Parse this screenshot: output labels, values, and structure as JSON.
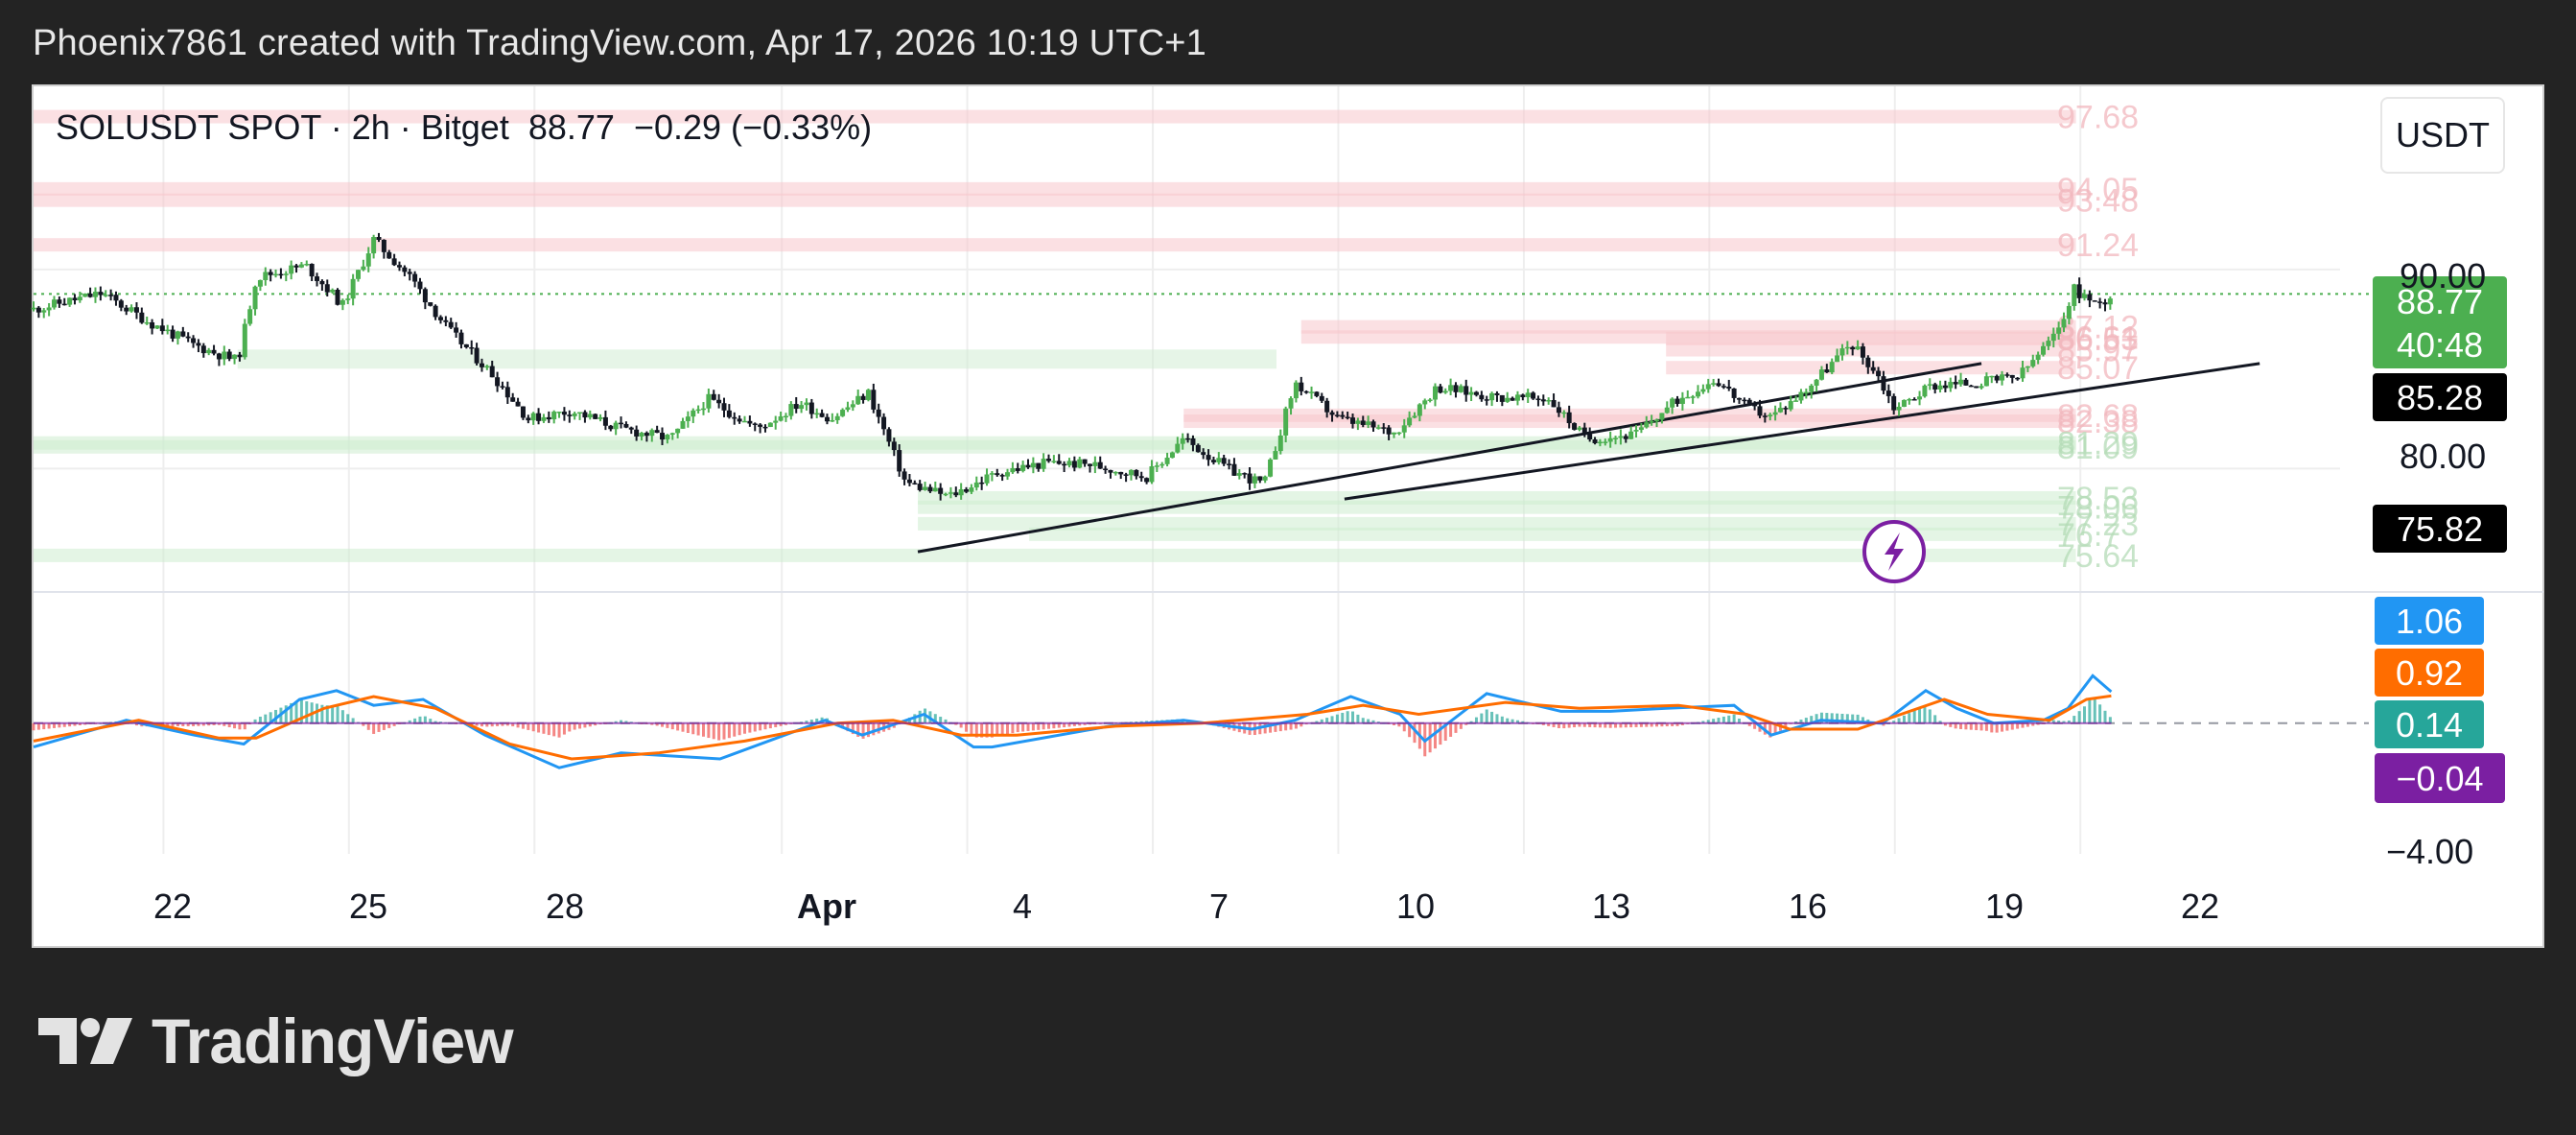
{
  "header": {
    "attribution": "Phoenix7861 created with TradingView.com, Apr 17, 2026 10:19 UTC+1"
  },
  "legend": {
    "symbol_line": "SOLUSDT SPOT · 2h · Bitget  88.77  −0.29 (−0.33%)"
  },
  "currency": "USDT",
  "footer": {
    "brand": "TradingView"
  },
  "colors": {
    "up": "#4caf50",
    "down": "#131722",
    "resistance_zone": "#f8c6cc",
    "support_zone": "#cdeccf",
    "macd_line": "#2196f3",
    "signal_line": "#ff6d00",
    "price_line": "#4caf50",
    "background": "#232323",
    "bolt_icon": "#7b1fa2"
  },
  "chart_data": [
    {
      "type": "candlestick",
      "title": "",
      "symbol": "SOLUSDT",
      "interval": "2h",
      "exchange": "Bitget",
      "last": 88.77,
      "change": -0.29,
      "change_pct": -0.33,
      "x_tick_labels": [
        "22",
        "25",
        "28",
        "Apr",
        "4",
        "7",
        "10",
        "13",
        "16",
        "19",
        "22"
      ],
      "x_range_days": [
        19.9,
        57.2
      ],
      "y_axis_tick_labels": [
        "80.00",
        "90.00"
      ],
      "y_range": [
        73.9,
        99.2
      ],
      "grid": true,
      "approx_close_path": [
        {
          "day": 19.9,
          "close": 88.0
        },
        {
          "day": 21.0,
          "close": 88.8
        },
        {
          "day": 21.8,
          "close": 87.3
        },
        {
          "day": 22.5,
          "close": 86.2
        },
        {
          "day": 23.2,
          "close": 85.4
        },
        {
          "day": 23.5,
          "close": 89.6
        },
        {
          "day": 24.3,
          "close": 90.2
        },
        {
          "day": 24.9,
          "close": 88.2
        },
        {
          "day": 25.4,
          "close": 91.5
        },
        {
          "day": 26.0,
          "close": 89.6
        },
        {
          "day": 26.6,
          "close": 87.0
        },
        {
          "day": 27.3,
          "close": 84.8
        },
        {
          "day": 27.9,
          "close": 82.5
        },
        {
          "day": 28.6,
          "close": 82.9
        },
        {
          "day": 29.4,
          "close": 82.0
        },
        {
          "day": 30.2,
          "close": 81.5
        },
        {
          "day": 30.8,
          "close": 83.5
        },
        {
          "day": 31.6,
          "close": 82.0
        },
        {
          "day": 32.3,
          "close": 83.3
        },
        {
          "day": 32.8,
          "close": 82.5
        },
        {
          "day": 33.4,
          "close": 83.8
        },
        {
          "day": 34.0,
          "close": 79.3
        },
        {
          "day": 34.7,
          "close": 78.6
        },
        {
          "day": 35.5,
          "close": 79.8
        },
        {
          "day": 36.3,
          "close": 80.3
        },
        {
          "day": 37.0,
          "close": 80.2
        },
        {
          "day": 37.9,
          "close": 79.6
        },
        {
          "day": 38.5,
          "close": 81.5
        },
        {
          "day": 39.2,
          "close": 80.0
        },
        {
          "day": 39.8,
          "close": 79.2
        },
        {
          "day": 40.3,
          "close": 84.3
        },
        {
          "day": 41.0,
          "close": 82.5
        },
        {
          "day": 41.9,
          "close": 81.8
        },
        {
          "day": 42.6,
          "close": 84.1
        },
        {
          "day": 43.5,
          "close": 83.6
        },
        {
          "day": 44.4,
          "close": 83.5
        },
        {
          "day": 45.0,
          "close": 81.5
        },
        {
          "day": 45.8,
          "close": 81.7
        },
        {
          "day": 46.5,
          "close": 83.5
        },
        {
          "day": 47.1,
          "close": 84.5
        },
        {
          "day": 47.6,
          "close": 83.1
        },
        {
          "day": 48.0,
          "close": 82.6
        },
        {
          "day": 48.5,
          "close": 83.8
        },
        {
          "day": 49.3,
          "close": 86.3
        },
        {
          "day": 49.7,
          "close": 84.8
        },
        {
          "day": 50.0,
          "close": 83.0
        },
        {
          "day": 50.6,
          "close": 84.2
        },
        {
          "day": 51.3,
          "close": 84.3
        },
        {
          "day": 52.0,
          "close": 84.6
        },
        {
          "day": 52.6,
          "close": 86.7
        },
        {
          "day": 52.9,
          "close": 89.0
        },
        {
          "day": 53.3,
          "close": 88.2
        },
        {
          "day": 53.5,
          "close": 88.77
        }
      ],
      "resistance_zone_labels": [
        "97.68",
        "94.05",
        "93.48",
        "91.24",
        "87.12",
        "86.61",
        "86.53",
        "85.97",
        "85.07",
        "82.68",
        "82.38"
      ],
      "support_zone_labels": [
        "81.29",
        "81.09",
        "78.53",
        "78.06",
        "77.23",
        "76.7",
        "75.64"
      ],
      "price_tags": [
        {
          "value": "88.77",
          "sublabel": "40:48",
          "kind": "last"
        },
        {
          "value": "85.28",
          "kind": "trendline"
        },
        {
          "value": "75.82",
          "kind": "trendline"
        }
      ],
      "trendlines": [
        {
          "from": {
            "day": 34.2,
            "price": 75.82
          },
          "to": {
            "day": 51.4,
            "price": 85.28
          }
        },
        {
          "from": {
            "day": 41.1,
            "price": 78.47
          },
          "to": {
            "day": 55.9,
            "price": 85.28
          }
        }
      ],
      "annotation_icon": "lightning-bolt-icon"
    },
    {
      "type": "line",
      "title": "",
      "indicator": "MACD",
      "y_axis_tick_labels": [
        "−4.00"
      ],
      "values_shown": {
        "macd": "1.06",
        "signal": "0.92",
        "histogram": "0.14",
        "other": "−0.04"
      },
      "zero_line": true,
      "series": [
        {
          "name": "",
          "color": "#2196f3",
          "points": [
            [
              19.9,
              -0.8
            ],
            [
              21.4,
              0.1
            ],
            [
              22.5,
              -0.4
            ],
            [
              23.3,
              -0.7
            ],
            [
              24.2,
              0.8
            ],
            [
              24.8,
              1.1
            ],
            [
              25.4,
              0.6
            ],
            [
              26.2,
              0.8
            ],
            [
              27.2,
              -0.4
            ],
            [
              28.4,
              -1.5
            ],
            [
              29.4,
              -1.0
            ],
            [
              31.0,
              -1.2
            ],
            [
              32.7,
              0.1
            ],
            [
              33.3,
              -0.4
            ],
            [
              34.3,
              0.3
            ],
            [
              35.1,
              -0.8
            ],
            [
              35.4,
              -0.8
            ],
            [
              37.3,
              -0.1
            ],
            [
              38.5,
              0.1
            ],
            [
              39.6,
              -0.2
            ],
            [
              40.3,
              0.1
            ],
            [
              41.2,
              0.9
            ],
            [
              42.0,
              0.3
            ],
            [
              42.4,
              -0.6
            ],
            [
              43.4,
              1.0
            ],
            [
              44.6,
              0.4
            ],
            [
              45.4,
              0.4
            ],
            [
              46.3,
              0.5
            ],
            [
              47.4,
              0.6
            ],
            [
              48.0,
              -0.4
            ],
            [
              48.8,
              0.1
            ],
            [
              49.8,
              0.0
            ],
            [
              50.5,
              1.1
            ],
            [
              51.0,
              0.5
            ],
            [
              51.6,
              0.0
            ],
            [
              52.4,
              0.1
            ],
            [
              52.8,
              0.5
            ],
            [
              53.2,
              1.6
            ],
            [
              53.5,
              1.06
            ]
          ]
        },
        {
          "name": "",
          "color": "#ff6d00",
          "points": [
            [
              19.9,
              -0.6
            ],
            [
              21.6,
              0.1
            ],
            [
              22.9,
              -0.5
            ],
            [
              23.5,
              -0.5
            ],
            [
              24.6,
              0.5
            ],
            [
              25.4,
              0.9
            ],
            [
              26.4,
              0.5
            ],
            [
              27.6,
              -0.7
            ],
            [
              28.6,
              -1.2
            ],
            [
              30.0,
              -1.0
            ],
            [
              31.4,
              -0.6
            ],
            [
              32.9,
              0.0
            ],
            [
              33.8,
              0.1
            ],
            [
              34.9,
              -0.4
            ],
            [
              35.8,
              -0.4
            ],
            [
              37.4,
              -0.1
            ],
            [
              38.8,
              0.0
            ],
            [
              40.5,
              0.3
            ],
            [
              41.4,
              0.6
            ],
            [
              42.3,
              0.3
            ],
            [
              43.7,
              0.7
            ],
            [
              44.9,
              0.5
            ],
            [
              46.5,
              0.6
            ],
            [
              47.6,
              0.3
            ],
            [
              48.3,
              -0.2
            ],
            [
              49.4,
              -0.2
            ],
            [
              50.8,
              0.8
            ],
            [
              51.5,
              0.3
            ],
            [
              52.5,
              0.1
            ],
            [
              53.1,
              0.8
            ],
            [
              53.5,
              0.92
            ]
          ]
        }
      ]
    }
  ]
}
